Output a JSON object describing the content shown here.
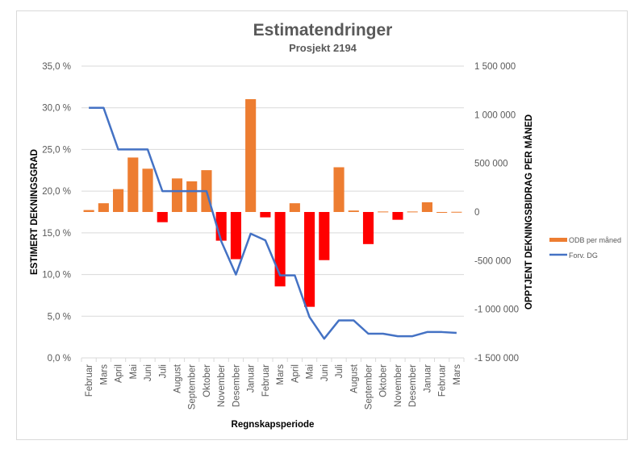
{
  "chart_data": {
    "type": "bar+line",
    "title": "Estimatendringer",
    "subtitle": "Prosjekt 2194",
    "xlabel": "Regnskapsperiode",
    "ylabel_left": "ESTIMERT DEKNINGSGRAD",
    "ylabel_right": "OPPTJENT DEKNINGSBIDRAG PER MÅNED",
    "categories": [
      "Februar",
      "Mars",
      "April",
      "Mai",
      "Juni",
      "Juli",
      "August",
      "September",
      "Oktober",
      "November",
      "Desember",
      "Januar",
      "Februar",
      "Mars",
      "April",
      "Mai",
      "Juni",
      "Juli",
      "August",
      "September",
      "Oktober",
      "November",
      "Desember",
      "Januar",
      "Februar",
      "Mars"
    ],
    "y_left": {
      "min": 0,
      "max": 35,
      "step": 5,
      "tick_labels": [
        "0,0 %",
        "5,0 %",
        "10,0 %",
        "15,0 %",
        "20,0 %",
        "25,0 %",
        "30,0 %",
        "35,0 %"
      ]
    },
    "y_right": {
      "min": -1500000,
      "max": 1500000,
      "step": 500000,
      "tick_labels": [
        "-1 500 000",
        "-1 000 000",
        "-500 000",
        "0",
        "500 000",
        "1 000 000",
        "1 500 000"
      ]
    },
    "grid": true,
    "legend_position": "right",
    "series": [
      {
        "name": "ODB per måned",
        "type": "bar",
        "axis": "right",
        "color": "#ED7D31",
        "negative_color": "#FF0000",
        "values": [
          20000,
          90000,
          235000,
          560000,
          445000,
          -105000,
          345000,
          315000,
          430000,
          -295000,
          -485000,
          1160000,
          -55000,
          -765000,
          90000,
          -975000,
          -495000,
          460000,
          15000,
          -330000,
          5000,
          -80000,
          5000,
          100000,
          0,
          2000
        ]
      },
      {
        "name": "Forv. DG",
        "type": "line",
        "axis": "left",
        "color": "#4472C4",
        "values": [
          30.0,
          30.0,
          25.0,
          25.0,
          25.0,
          20.0,
          20.0,
          20.0,
          20.0,
          14.0,
          10.0,
          14.9,
          14.1,
          9.9,
          9.9,
          4.9,
          2.3,
          4.5,
          4.5,
          2.9,
          2.9,
          2.6,
          2.6,
          3.1,
          3.1,
          3.0
        ]
      }
    ]
  }
}
